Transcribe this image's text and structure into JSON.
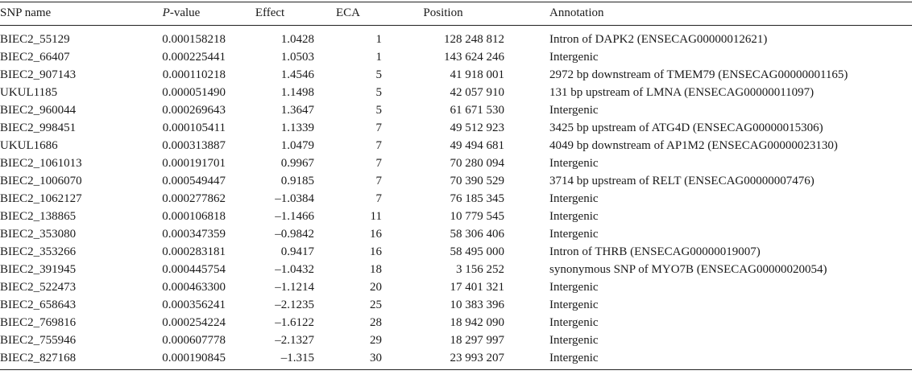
{
  "headers": {
    "snp_name": "SNP name",
    "p_value_italic": "P",
    "p_value_rest": "-value",
    "effect": "Effect",
    "eca": "ECA",
    "position": "Position",
    "annotation": "Annotation"
  },
  "rows": [
    {
      "snp": "BIEC2_55129",
      "p": "0.000158218",
      "effect": "1.0428",
      "eca": "1",
      "position": "128 248 812",
      "annotation": "Intron of DAPK2 (ENSECAG00000012621)"
    },
    {
      "snp": "BIEC2_66407",
      "p": "0.000225441",
      "effect": "1.0503",
      "eca": "1",
      "position": "143 624 246",
      "annotation": "Intergenic"
    },
    {
      "snp": "BIEC2_907143",
      "p": "0.000110218",
      "effect": "1.4546",
      "eca": "5",
      "position": "41 918 001",
      "annotation": "2972 bp downstream of TMEM79 (ENSECAG00000001165)"
    },
    {
      "snp": "UKUL1185",
      "p": "0.000051490",
      "effect": "1.1498",
      "eca": "5",
      "position": "42 057 910",
      "annotation": "131 bp upstream of LMNA (ENSECAG00000011097)"
    },
    {
      "snp": "BIEC2_960044",
      "p": "0.000269643",
      "effect": "1.3647",
      "eca": "5",
      "position": "61 671 530",
      "annotation": "Intergenic"
    },
    {
      "snp": "BIEC2_998451",
      "p": "0.000105411",
      "effect": "1.1339",
      "eca": "7",
      "position": "49 512 923",
      "annotation": "3425 bp upstream of ATG4D (ENSECAG00000015306)"
    },
    {
      "snp": "UKUL1686",
      "p": "0.000313887",
      "effect": "1.0479",
      "eca": "7",
      "position": "49 494 681",
      "annotation": "4049 bp downstream of AP1M2 (ENSECAG00000023130)"
    },
    {
      "snp": "BIEC2_1061013",
      "p": "0.000191701",
      "effect": "0.9967",
      "eca": "7",
      "position": "70 280 094",
      "annotation": "Intergenic"
    },
    {
      "snp": "BIEC2_1006070",
      "p": "0.000549447",
      "effect": "0.9185",
      "eca": "7",
      "position": "70 390 529",
      "annotation": "3714 bp upstream of RELT (ENSECAG00000007476)"
    },
    {
      "snp": "BIEC2_1062127",
      "p": "0.000277862",
      "effect": "–1.0384",
      "eca": "7",
      "position": "76 185 345",
      "annotation": "Intergenic"
    },
    {
      "snp": "BIEC2_138865",
      "p": "0.000106818",
      "effect": "–1.1466",
      "eca": "11",
      "position": "10 779 545",
      "annotation": "Intergenic"
    },
    {
      "snp": "BIEC2_353080",
      "p": "0.000347359",
      "effect": "–0.9842",
      "eca": "16",
      "position": "58 306 406",
      "annotation": "Intergenic"
    },
    {
      "snp": "BIEC2_353266",
      "p": "0.000283181",
      "effect": "0.9417",
      "eca": "16",
      "position": "58 495 000",
      "annotation": "Intron of THRB (ENSECAG00000019007)"
    },
    {
      "snp": "BIEC2_391945",
      "p": "0.000445754",
      "effect": "–1.0432",
      "eca": "18",
      "position": "3 156 252",
      "annotation": "synonymous SNP of MYO7B (ENSECAG00000020054)"
    },
    {
      "snp": "BIEC2_522473",
      "p": "0.000463300",
      "effect": "–1.1214",
      "eca": "20",
      "position": "17 401 321",
      "annotation": "Intergenic"
    },
    {
      "snp": "BIEC2_658643",
      "p": "0.000356241",
      "effect": "–2.1235",
      "eca": "25",
      "position": "10 383 396",
      "annotation": "Intergenic"
    },
    {
      "snp": "BIEC2_769816",
      "p": "0.000254224",
      "effect": "–1.6122",
      "eca": "28",
      "position": "18 942 090",
      "annotation": "Intergenic"
    },
    {
      "snp": "BIEC2_755946",
      "p": "0.000607778",
      "effect": "–2.1327",
      "eca": "29",
      "position": "18 297 997",
      "annotation": "Intergenic"
    },
    {
      "snp": "BIEC2_827168",
      "p": "0.000190845",
      "effect": "–1.315",
      "eca": "30",
      "position": "23 993 207",
      "annotation": "Intergenic"
    }
  ]
}
